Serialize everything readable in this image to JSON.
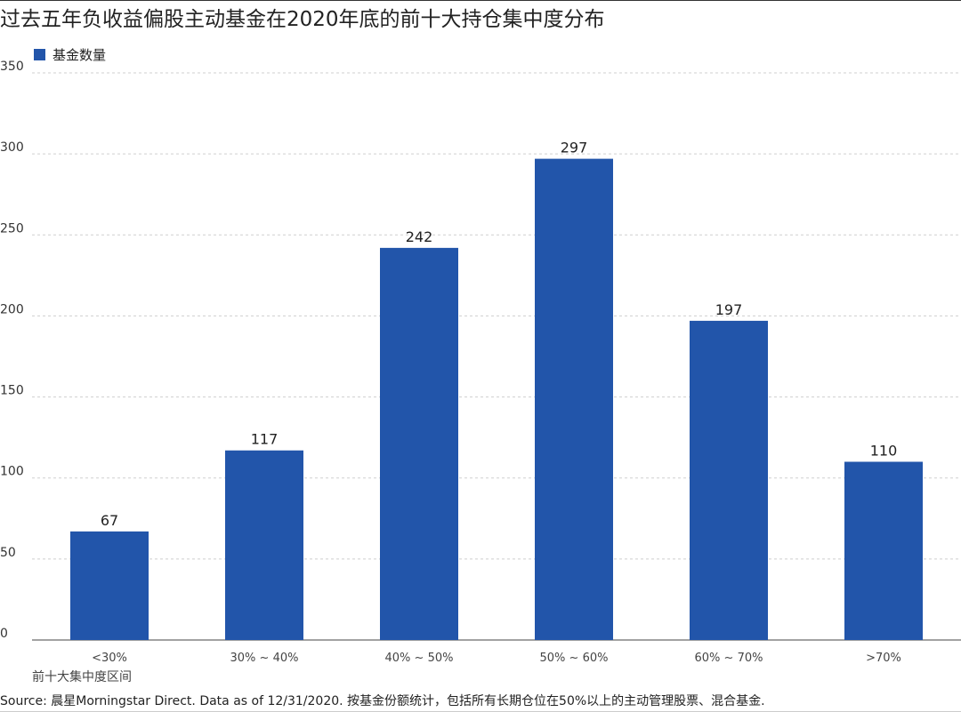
{
  "header": {
    "title": "过去五年负收益偏股主动基金在2020年底的前十大持仓集中度分布"
  },
  "legend": {
    "label": "基金数量",
    "color": "#2255aa"
  },
  "footer": {
    "xaxis_title": "前十大集中度区间",
    "source": "Source: 晨星Morningstar Direct. Data as of 12/31/2020. 按基金份额统计，包括所有长期仓位在50%以上的主动管理股票、混合基金."
  },
  "chart_data": {
    "type": "bar",
    "title": "过去五年负收益偏股主动基金在2020年底的前十大持仓集中度分布",
    "xlabel": "前十大集中度区间",
    "ylabel": "",
    "categories": [
      "<30%",
      "30% ~ 40%",
      "40% ~ 50%",
      "50% ~ 60%",
      "60% ~ 70%",
      ">70%"
    ],
    "series": [
      {
        "name": "基金数量",
        "values": [
          67,
          117,
          242,
          297,
          197,
          110
        ],
        "color": "#2255aa"
      }
    ],
    "ylim": [
      0,
      350
    ],
    "yticks": [
      0,
      50,
      100,
      150,
      200,
      250,
      300,
      350
    ],
    "grid": true,
    "legend": "top-left",
    "data_labels": true
  }
}
